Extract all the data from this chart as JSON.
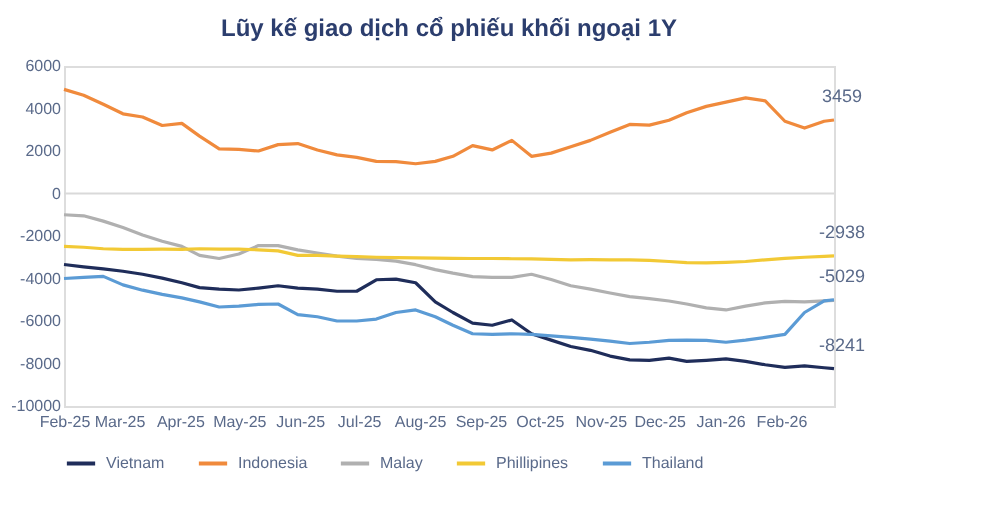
{
  "chart_data": {
    "type": "line",
    "title": "Lũy kế giao dịch cổ phiếu khối ngoại 1Y",
    "x": [
      "2025-02-01",
      "2025-02-11",
      "2025-02-21",
      "2025-03-03",
      "2025-03-13",
      "2025-03-23",
      "2025-04-02",
      "2025-04-11",
      "2025-04-21",
      "2025-05-01",
      "2025-05-11",
      "2025-05-21",
      "2025-05-31",
      "2025-06-10",
      "2025-06-20",
      "2025-06-30",
      "2025-07-10",
      "2025-07-20",
      "2025-07-30",
      "2025-08-09",
      "2025-08-18",
      "2025-08-28",
      "2025-09-07",
      "2025-09-17",
      "2025-09-27",
      "2025-10-07",
      "2025-10-17",
      "2025-10-27",
      "2025-11-06",
      "2025-11-16",
      "2025-11-26",
      "2025-12-06",
      "2025-12-15",
      "2025-12-25",
      "2026-01-04",
      "2026-01-14",
      "2026-01-24",
      "2026-02-03",
      "2026-02-13",
      "2026-02-23",
      "2026-02-28"
    ],
    "series": [
      {
        "name": "Vietnam",
        "color": "#1f2d5a",
        "values": [
          -3340,
          -3450,
          -3550,
          -3660,
          -3800,
          -3980,
          -4200,
          -4430,
          -4500,
          -4540,
          -4450,
          -4340,
          -4450,
          -4500,
          -4600,
          -4600,
          -4060,
          -4030,
          -4200,
          -5100,
          -5600,
          -6100,
          -6200,
          -5950,
          -6600,
          -6900,
          -7200,
          -7380,
          -7650,
          -7830,
          -7850,
          -7750,
          -7900,
          -7850,
          -7780,
          -7900,
          -8060,
          -8180,
          -8110,
          -8200,
          -8241
        ]
      },
      {
        "name": "Indonesia",
        "color": "#f08a3c",
        "values": [
          4900,
          4620,
          4200,
          3750,
          3600,
          3200,
          3300,
          2700,
          2100,
          2080,
          2000,
          2300,
          2350,
          2050,
          1820,
          1700,
          1510,
          1500,
          1400,
          1510,
          1750,
          2250,
          2050,
          2500,
          1750,
          1900,
          2200,
          2500,
          2880,
          3250,
          3220,
          3450,
          3800,
          4100,
          4300,
          4500,
          4360,
          3400,
          3080,
          3400,
          3459
        ]
      },
      {
        "name": "Malay",
        "color": "#b0b0b0",
        "values": [
          -1000,
          -1050,
          -1300,
          -1600,
          -1950,
          -2250,
          -2490,
          -2910,
          -3060,
          -2850,
          -2450,
          -2450,
          -2650,
          -2800,
          -2950,
          -3050,
          -3100,
          -3180,
          -3350,
          -3580,
          -3750,
          -3910,
          -3950,
          -3950,
          -3800,
          -4050,
          -4340,
          -4500,
          -4680,
          -4850,
          -4950,
          -5060,
          -5200,
          -5380,
          -5480,
          -5300,
          -5150,
          -5080,
          -5100,
          -5050,
          -5029
        ]
      },
      {
        "name": "Phillipines",
        "color": "#f2c935",
        "values": [
          -2490,
          -2530,
          -2600,
          -2630,
          -2630,
          -2620,
          -2630,
          -2600,
          -2620,
          -2620,
          -2650,
          -2700,
          -2910,
          -2910,
          -2950,
          -2970,
          -3000,
          -3020,
          -3030,
          -3040,
          -3050,
          -3060,
          -3060,
          -3070,
          -3080,
          -3100,
          -3120,
          -3110,
          -3120,
          -3120,
          -3150,
          -3200,
          -3250,
          -3260,
          -3240,
          -3200,
          -3120,
          -3050,
          -3000,
          -2960,
          -2938
        ]
      },
      {
        "name": "Thailand",
        "color": "#5b9bd5",
        "values": [
          -4000,
          -3950,
          -3900,
          -4300,
          -4550,
          -4750,
          -4910,
          -5100,
          -5340,
          -5300,
          -5220,
          -5200,
          -5700,
          -5800,
          -6000,
          -6000,
          -5910,
          -5600,
          -5480,
          -5800,
          -6200,
          -6600,
          -6630,
          -6600,
          -6630,
          -6700,
          -6770,
          -6850,
          -6950,
          -7060,
          -7000,
          -6910,
          -6900,
          -6910,
          -7000,
          -6900,
          -6770,
          -6630,
          -5600,
          -5050,
          -5000
        ]
      }
    ],
    "xlim": [
      "2025-02-01",
      "2026-02-28"
    ],
    "xticks": [
      {
        "value": "2025-02-01",
        "label": "Feb-25"
      },
      {
        "value": "2025-03-01",
        "label": "Mar-25"
      },
      {
        "value": "2025-04-01",
        "label": "Apr-25"
      },
      {
        "value": "2025-05-01",
        "label": "May-25"
      },
      {
        "value": "2025-06-01",
        "label": "Jun-25"
      },
      {
        "value": "2025-07-01",
        "label": "Jul-25"
      },
      {
        "value": "2025-08-01",
        "label": "Aug-25"
      },
      {
        "value": "2025-09-01",
        "label": "Sep-25"
      },
      {
        "value": "2025-10-01",
        "label": "Oct-25"
      },
      {
        "value": "2025-11-01",
        "label": "Nov-25"
      },
      {
        "value": "2025-12-01",
        "label": "Dec-25"
      },
      {
        "value": "2026-01-01",
        "label": "Jan-26"
      },
      {
        "value": "2026-02-01",
        "label": "Feb-26"
      }
    ],
    "ylim": [
      -10000,
      6000
    ],
    "yticks": [
      -10000,
      -8000,
      -6000,
      -4000,
      -2000,
      0,
      2000,
      4000,
      6000
    ],
    "ref_lines": [
      {
        "axis": "y",
        "value": 0,
        "color": "#d9d9d9"
      }
    ],
    "annotations": [
      {
        "text": "3459",
        "x": "2026-02-28",
        "y": 3459
      },
      {
        "text": "-2938",
        "x": "2026-02-28",
        "y": -2938
      },
      {
        "text": "-5029",
        "x": "2026-02-28",
        "y": -5029
      },
      {
        "text": "-8241",
        "x": "2026-02-28",
        "y": -8241
      }
    ],
    "grid": false,
    "legend": "bottom",
    "marker": "none",
    "line_style": "solid"
  }
}
